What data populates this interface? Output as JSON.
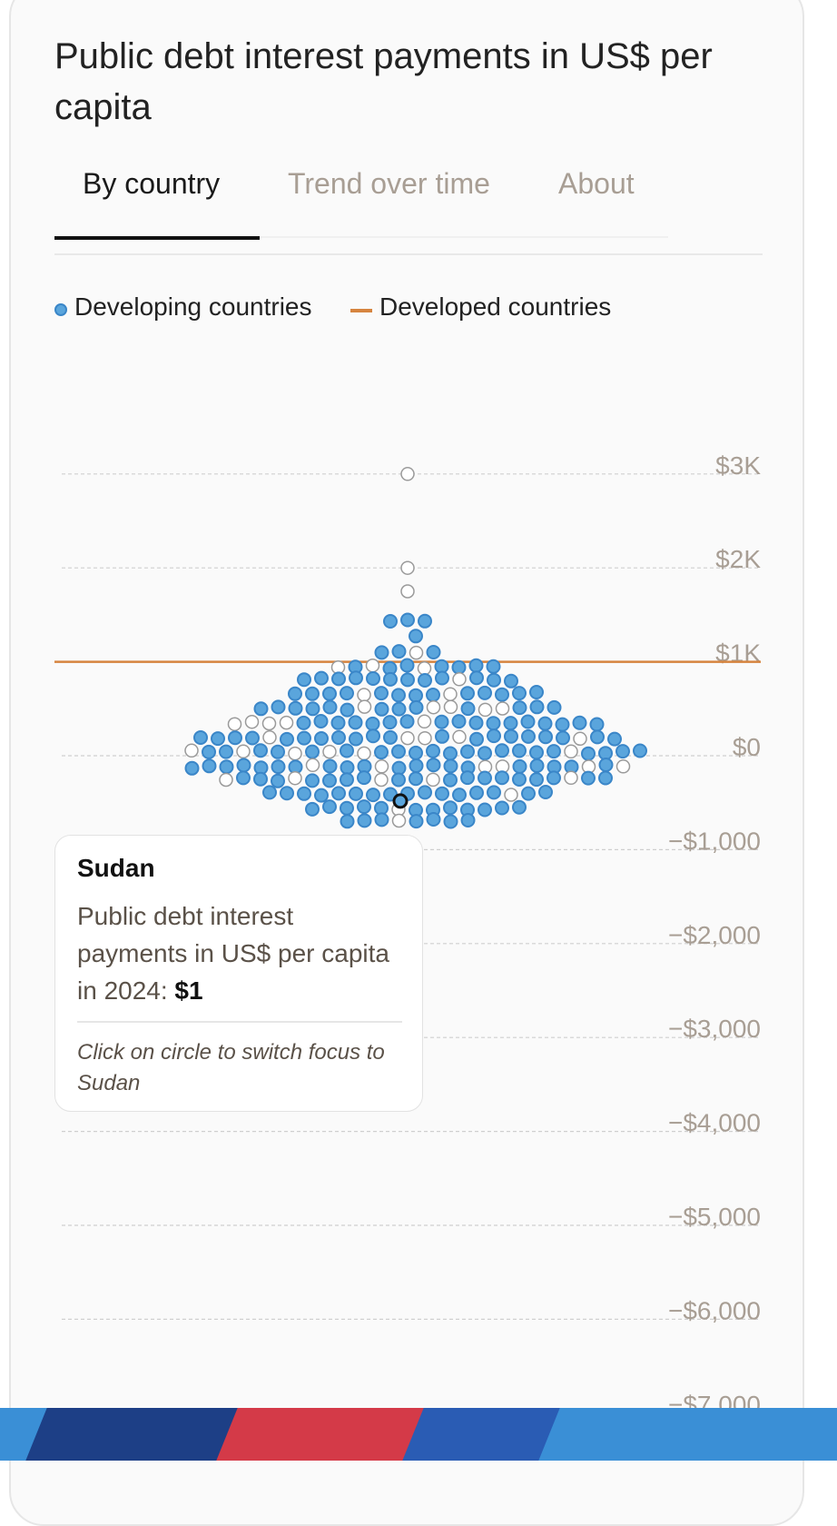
{
  "title": "Public debt interest payments in US$ per capita",
  "tabs": [
    {
      "label": "By country",
      "active": true
    },
    {
      "label": "Trend over time",
      "active": false
    },
    {
      "label": "About",
      "active": false
    }
  ],
  "legend": [
    {
      "label": "Developing countries",
      "marker": "dot",
      "color": "#5aa5dc"
    },
    {
      "label": "Developed countries",
      "marker": "line",
      "color": "#d6843f"
    }
  ],
  "tooltip": {
    "country": "Sudan",
    "text": "Public debt interest payments in US$ per capita in 2024: ",
    "value": "$1",
    "hint": "Click on circle to switch focus to Sudan"
  },
  "colors": {
    "developing_fill": "#5aa5dc",
    "developing_stroke": "#3a86c8",
    "other_stroke": "#9a9a9a",
    "developed_line": "#d6843f",
    "focus_stroke": "#111111",
    "axis_label": "#a89e94",
    "grid": "#cfcfcf"
  },
  "chart_data": {
    "type": "beeswarm",
    "y_ticks": [
      {
        "value": 3000,
        "label": "$3K"
      },
      {
        "value": 2000,
        "label": "$2K"
      },
      {
        "value": 1000,
        "label": "$1K"
      },
      {
        "value": 0,
        "label": "$0"
      },
      {
        "value": -1000,
        "label": "−$1,000"
      },
      {
        "value": -2000,
        "label": "−$2,000"
      },
      {
        "value": -3000,
        "label": "−$3,000"
      },
      {
        "value": -4000,
        "label": "−$4,000"
      },
      {
        "value": -5000,
        "label": "−$5,000"
      },
      {
        "value": -6000,
        "label": "−$6,000"
      },
      {
        "value": -7000,
        "label": "−$7,000"
      }
    ],
    "grid": true,
    "developed_countries_line": 1000,
    "focus": {
      "country": "Sudan",
      "year": 2024,
      "value": 1
    },
    "outliers": [
      3000,
      2000,
      1750
    ],
    "developing_countries_count": 215,
    "other_countries_count": 48,
    "value_range": [
      -800,
      1700
    ]
  }
}
